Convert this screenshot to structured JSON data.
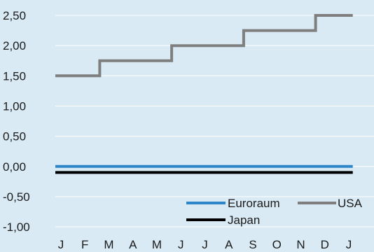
{
  "chart_data": {
    "type": "line",
    "title": "",
    "xlabel": "",
    "ylabel": "",
    "x_ticks": [
      "J",
      "F",
      "M",
      "A",
      "M",
      "J",
      "J",
      "A",
      "S",
      "O",
      "N",
      "D",
      "J"
    ],
    "y_ticks": [
      "2,50",
      "2,00",
      "1,50",
      "1,00",
      "0,50",
      "0,00",
      "-0,50",
      "-1,00"
    ],
    "y_tick_values": [
      2.5,
      2.0,
      1.5,
      1.0,
      0.5,
      0.0,
      -0.5,
      -1.0
    ],
    "ylim": [
      -1.15,
      2.7
    ],
    "xlim": [
      0,
      12.4
    ],
    "grid": true,
    "legend_position": "bottom-right",
    "series": [
      {
        "name": "Euroraum",
        "color": "#2e86c9",
        "points": [
          [
            0,
            0.0
          ],
          [
            12.4,
            0.0
          ]
        ]
      },
      {
        "name": "USA",
        "color": "#7f7f7f",
        "points": [
          [
            0,
            1.5
          ],
          [
            1.85,
            1.5
          ],
          [
            1.85,
            1.75
          ],
          [
            4.85,
            1.75
          ],
          [
            4.85,
            2.0
          ],
          [
            7.85,
            2.0
          ],
          [
            7.85,
            2.25
          ],
          [
            10.85,
            2.25
          ],
          [
            10.85,
            2.5
          ],
          [
            12.4,
            2.5
          ]
        ]
      },
      {
        "name": "Japan",
        "color": "#000000",
        "points": [
          [
            0,
            -0.1
          ],
          [
            12.4,
            -0.1
          ]
        ]
      }
    ]
  }
}
